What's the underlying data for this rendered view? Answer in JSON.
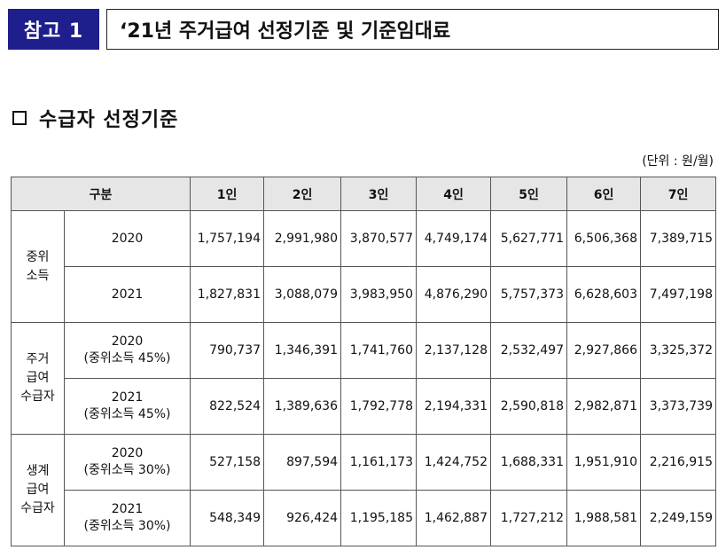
{
  "reference_badge": "참고 1",
  "document_title": "‘21년 주거급여 선정기준 및 기준임대료",
  "section_title": "수급자 선정기준",
  "unit_note": "(단위 : 원/월)",
  "table": {
    "header": {
      "category": "구분",
      "columns": [
        "1인",
        "2인",
        "3인",
        "4인",
        "5인",
        "6인",
        "7인"
      ]
    },
    "groups": [
      {
        "label_lines": [
          "중위",
          "소득"
        ],
        "rows": [
          {
            "year": "2020",
            "note": "",
            "values": [
              "1,757,194",
              "2,991,980",
              "3,870,577",
              "4,749,174",
              "5,627,771",
              "6,506,368",
              "7,389,715"
            ]
          },
          {
            "year": "2021",
            "note": "",
            "values": [
              "1,827,831",
              "3,088,079",
              "3,983,950",
              "4,876,290",
              "5,757,373",
              "6,628,603",
              "7,497,198"
            ]
          }
        ]
      },
      {
        "label_lines": [
          "주거",
          "급여",
          "수급자"
        ],
        "rows": [
          {
            "year": "2020",
            "note": "(중위소득 45%)",
            "values": [
              "790,737",
              "1,346,391",
              "1,741,760",
              "2,137,128",
              "2,532,497",
              "2,927,866",
              "3,325,372"
            ]
          },
          {
            "year": "2021",
            "note": "(중위소득 45%)",
            "values": [
              "822,524",
              "1,389,636",
              "1,792,778",
              "2,194,331",
              "2,590,818",
              "2,982,871",
              "3,373,739"
            ]
          }
        ]
      },
      {
        "label_lines": [
          "생계",
          "급여",
          "수급자"
        ],
        "rows": [
          {
            "year": "2020",
            "note": "(중위소득 30%)",
            "values": [
              "527,158",
              "897,594",
              "1,161,173",
              "1,424,752",
              "1,688,331",
              "1,951,910",
              "2,216,915"
            ]
          },
          {
            "year": "2021",
            "note": "(중위소득 30%)",
            "values": [
              "548,349",
              "926,424",
              "1,195,185",
              "1,462,887",
              "1,727,212",
              "1,988,581",
              "2,249,159"
            ]
          }
        ]
      }
    ]
  }
}
